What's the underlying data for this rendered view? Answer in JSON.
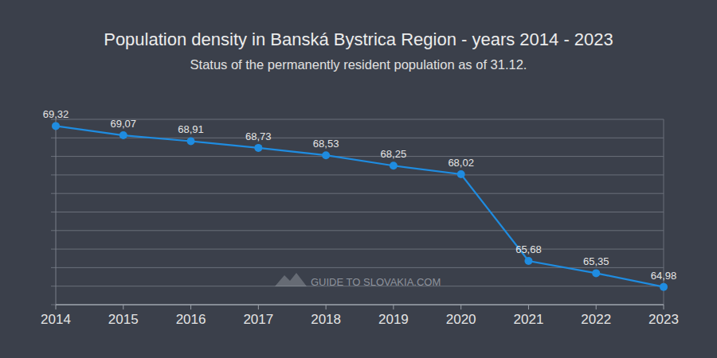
{
  "chart_data": {
    "type": "line",
    "title": "Population density in Banská Bystrica Region - years 2014 - 2023",
    "subtitle": "Status of the permanently resident population as of 31.12.",
    "annotations": [
      "GUIDE TO SLOVAKIA.COM"
    ],
    "categories": [
      "2014",
      "2015",
      "2016",
      "2017",
      "2018",
      "2019",
      "2020",
      "2021",
      "2022",
      "2023"
    ],
    "values": [
      69.32,
      69.07,
      68.91,
      68.73,
      68.53,
      68.25,
      68.02,
      65.68,
      65.35,
      64.98
    ],
    "value_labels": [
      "69,32",
      "69,07",
      "68,91",
      "68,73",
      "68,53",
      "68,25",
      "68,02",
      "65,68",
      "65,35",
      "64,98"
    ],
    "color": "#1f8ce0",
    "marker": "circle",
    "ylim": [
      64.5,
      69.5
    ],
    "yticks": [
      64.5,
      65,
      65.5,
      66,
      66.5,
      67,
      67.5,
      68,
      68.5,
      69,
      69.5
    ],
    "grid": true,
    "data_labels": true,
    "tick_labels": "x"
  }
}
